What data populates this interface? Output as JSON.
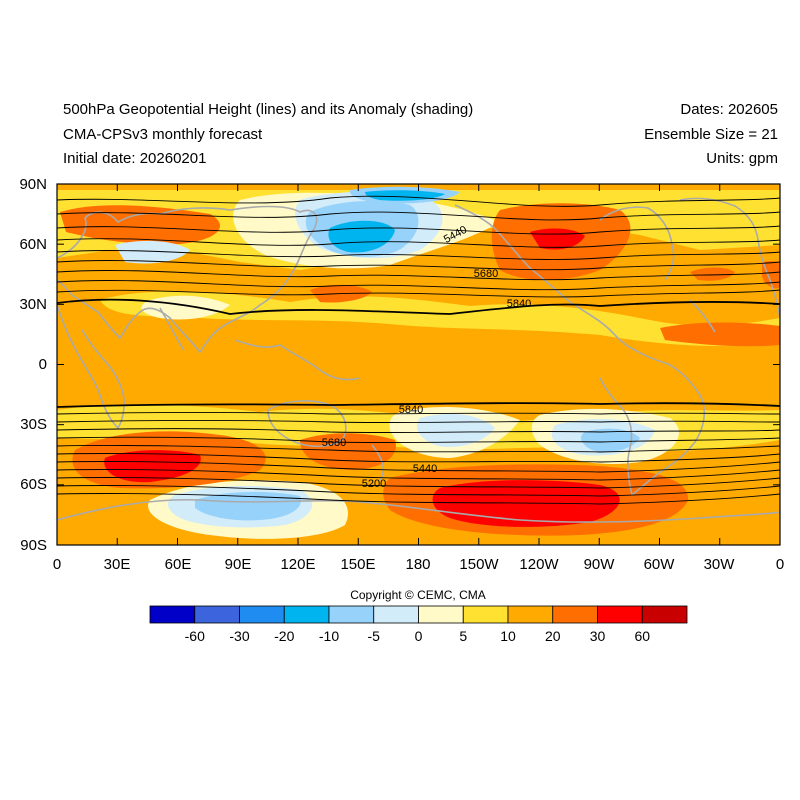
{
  "header": {
    "title_line1": "500hPa Geopotential Height (lines) and its Anomaly (shading)",
    "title_line2": "CMA-CPSv3 monthly forecast",
    "title_line3": "Initial date: 20260201",
    "dates": "Dates: 202605",
    "ensemble": "Ensemble Size = 21",
    "units": "Units: gpm"
  },
  "axes": {
    "lat_labels": [
      "90N",
      "60N",
      "30N",
      "0",
      "30S",
      "60S",
      "90S"
    ],
    "lon_labels": [
      "0",
      "30E",
      "60E",
      "90E",
      "120E",
      "150E",
      "180",
      "150W",
      "120W",
      "90W",
      "60W",
      "30W",
      "0"
    ]
  },
  "contour_labels": [
    "5440",
    "5680",
    "5840",
    "5840",
    "5680",
    "5440",
    "5200"
  ],
  "copyright": "Copyright © CEMC, CMA",
  "colorbar": {
    "colors": [
      "#0000c8",
      "#3c64dc",
      "#1e8cf0",
      "#00b4f0",
      "#96d2fa",
      "#d2ecfa",
      "#fffac8",
      "#ffe132",
      "#ffaa00",
      "#ff6e00",
      "#ff0000",
      "#c80000"
    ],
    "labels": [
      "-60",
      "-30",
      "-20",
      "-10",
      "-5",
      "0",
      "5",
      "10",
      "20",
      "30",
      "60"
    ]
  },
  "shading_colors": {
    "warm_base": "#ffaa00",
    "warm_weak": "#ffe132",
    "warm_strong": "#ff6e00",
    "warm_max": "#ff0000",
    "neutral_pos": "#fffac8",
    "neutral_neg": "#d2ecfa",
    "cool_weak": "#96d2fa",
    "cool_mid": "#00b4f0",
    "coast": "#aaaaaa"
  }
}
